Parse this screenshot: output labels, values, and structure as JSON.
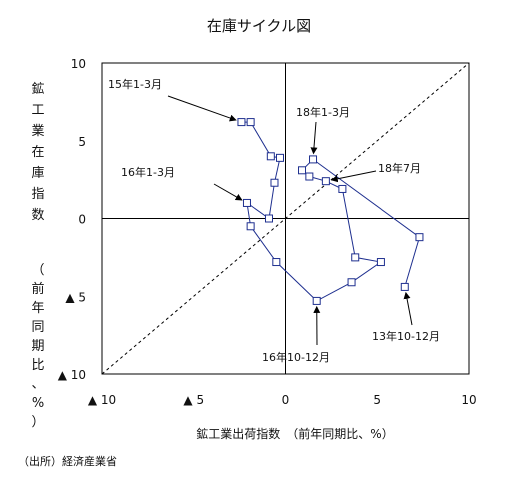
{
  "chart_data": {
    "type": "scatter",
    "title": "在庫サイクル図",
    "xlabel": "鉱工業出荷指数　（前年同期比、%）",
    "ylabel_main": "鉱工業在庫指数",
    "ylabel_paren": "（前年同期比、%）",
    "source_note": "（出所）経済産業省",
    "xlim": [
      -10,
      10
    ],
    "ylim": [
      -10,
      10
    ],
    "x_ticks": [
      {
        "value": -10,
        "label": "▲ 10"
      },
      {
        "value": -5,
        "label": "▲ 5"
      },
      {
        "value": 0,
        "label": "0"
      },
      {
        "value": 5,
        "label": "5"
      },
      {
        "value": 10,
        "label": "10"
      }
    ],
    "y_ticks": [
      {
        "value": 10,
        "label": "10"
      },
      {
        "value": 5,
        "label": "5"
      },
      {
        "value": 0,
        "label": "0"
      },
      {
        "value": -5,
        "label": "▲ 5"
      },
      {
        "value": -10,
        "label": "▲ 10"
      }
    ],
    "diagonal": "y = x (dashed)",
    "series": [
      {
        "points": [
          {
            "x": -2.4,
            "y": 6.2
          },
          {
            "x": -1.9,
            "y": 6.2
          },
          {
            "x": -0.8,
            "y": 4.0
          },
          {
            "x": -0.3,
            "y": 3.9
          },
          {
            "x": -0.6,
            "y": 2.3
          },
          {
            "x": -0.9,
            "y": 0.0
          },
          {
            "x": -2.1,
            "y": 1.0
          },
          {
            "x": -1.9,
            "y": -0.5
          },
          {
            "x": -0.5,
            "y": -2.8
          },
          {
            "x": 1.7,
            "y": -5.3
          },
          {
            "x": 3.6,
            "y": -4.1
          },
          {
            "x": 5.2,
            "y": -2.8
          },
          {
            "x": 3.8,
            "y": -2.5
          },
          {
            "x": 3.1,
            "y": 1.9
          },
          {
            "x": 2.2,
            "y": 2.4
          },
          {
            "x": 1.3,
            "y": 2.7
          },
          {
            "x": 0.9,
            "y": 3.1
          },
          {
            "x": 1.5,
            "y": 3.8
          },
          {
            "x": 7.3,
            "y": -1.2
          },
          {
            "x": 6.5,
            "y": -4.4
          }
        ]
      }
    ],
    "annotations": [
      {
        "label": "15年1-3月",
        "point_index": 0
      },
      {
        "label": "18年1-3月",
        "point_index": 17
      },
      {
        "label": "16年1-3月",
        "point_index": 6
      },
      {
        "label": "18年7月",
        "point_index": 14
      },
      {
        "label": "16年10-12月",
        "point_index": 9
      },
      {
        "label": "13年10-12月",
        "point_index": 19
      }
    ],
    "colors": {
      "line": "#1e2f8f",
      "marker_fill": "#ffffff",
      "axis": "#000000"
    }
  }
}
